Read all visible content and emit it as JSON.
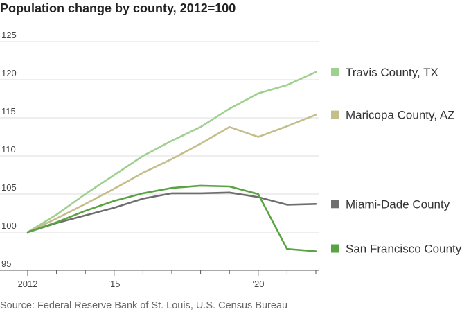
{
  "title": "Population change by county, 2012=100",
  "source": "Source: Federal Reserve Bank of St. Louis, U.S. Census Bureau",
  "chart_data": {
    "type": "line",
    "title": "Population change by county, 2012=100",
    "x": [
      2012,
      2013,
      2014,
      2015,
      2016,
      2017,
      2018,
      2019,
      2020,
      2021,
      2022
    ],
    "x_tick_values": [
      2012,
      2015,
      2020
    ],
    "x_tick_labels": [
      "2012",
      "’15",
      "’20"
    ],
    "ylim": [
      95,
      125
    ],
    "y_ticks": [
      95,
      100,
      105,
      110,
      115,
      120,
      125
    ],
    "grid": "horizontal",
    "legend_placement": "right",
    "series": [
      {
        "name": "Travis County, TX",
        "color": "#9fd08f",
        "values": [
          100,
          102.3,
          105.0,
          107.5,
          110.0,
          112.0,
          113.8,
          116.2,
          118.2,
          119.3,
          121.0
        ]
      },
      {
        "name": "Maricopa County, AZ",
        "color": "#c4bd8c",
        "values": [
          100,
          101.8,
          103.7,
          105.7,
          107.8,
          109.6,
          111.6,
          113.8,
          112.5,
          113.9,
          115.4
        ]
      },
      {
        "name": "Miami-Dade County",
        "color": "#6e6e6e",
        "values": [
          100,
          101.2,
          102.2,
          103.2,
          104.4,
          105.1,
          105.1,
          105.2,
          104.6,
          103.6,
          103.7
        ]
      },
      {
        "name": "San Francisco County",
        "color": "#5aa344",
        "values": [
          100,
          101.3,
          102.8,
          104.1,
          105.1,
          105.8,
          106.1,
          106.0,
          105.0,
          97.8,
          97.5
        ]
      }
    ]
  }
}
